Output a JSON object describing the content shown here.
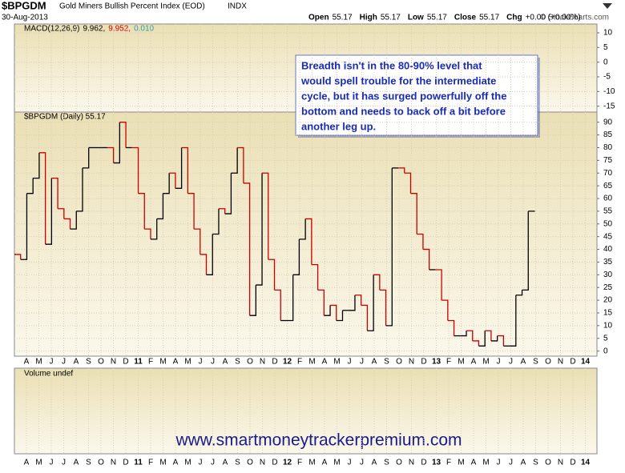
{
  "chart_data": {
    "type": "step-line",
    "symbol": "$BPGDM",
    "title": "Gold Miners Bullish Percent Index (EOD)",
    "exchange": "INDX",
    "date": "30-Aug-2013",
    "quote": [
      {
        "label": "Open",
        "value": 55.17
      },
      {
        "label": "High",
        "value": 55.17
      },
      {
        "label": "Low",
        "value": 55.17
      },
      {
        "label": "Close",
        "value": 55.17
      }
    ],
    "change_label": "Chg",
    "change": "+0.00 (+0.00%)",
    "copyright": "© StockCharts.com",
    "macd_panel": {
      "label": "MACD(12,26,9)",
      "readings": [
        {
          "text": "9.962,",
          "color": "#000000"
        },
        {
          "text": "9.952,",
          "color": "#d40000"
        },
        {
          "text": "0.010",
          "color": "#2a9fa8"
        }
      ],
      "ylim": [
        -17,
        13
      ],
      "yticks": [
        10,
        5,
        0,
        -5,
        -10,
        -15
      ]
    },
    "price_label": "$BPGDM (Daily) 55.17",
    "volume_label": "Volume undef",
    "annotation": [
      "Breadth isn't in the 80-90% level that",
      "would spell trouble for the intermediate",
      "cycle, but it has surged powerfully off the",
      "bottom and needs to back off a bit before",
      "another leg up."
    ],
    "watermark": "www.smartmoneytrackerpremium.com",
    "month_labels": [
      "A",
      "M",
      "J",
      "J",
      "A",
      "S",
      "O",
      "N",
      "D",
      "11",
      "F",
      "M",
      "A",
      "M",
      "J",
      "J",
      "A",
      "S",
      "O",
      "N",
      "D",
      "12",
      "F",
      "M",
      "A",
      "M",
      "J",
      "J",
      "A",
      "S",
      "O",
      "N",
      "D",
      "13",
      "F",
      "M",
      "A",
      "M",
      "J",
      "J",
      "A",
      "S",
      "O",
      "N",
      "D",
      "14"
    ],
    "ylim": [
      -2,
      94
    ],
    "yticks": [
      0,
      5,
      10,
      15,
      20,
      25,
      30,
      35,
      40,
      45,
      50,
      55,
      60,
      65,
      70,
      75,
      80,
      85,
      90
    ],
    "grid": true,
    "up_color": "#000000",
    "down_color": "#cc0000",
    "series": [
      {
        "name": "$BPGDM",
        "values": [
          38,
          36,
          62,
          68,
          78,
          42,
          68,
          56,
          52,
          48,
          55,
          72,
          80,
          80,
          80,
          80,
          74,
          90,
          80,
          80,
          62,
          48,
          44,
          52,
          62,
          70,
          64,
          80,
          62,
          48,
          38,
          30,
          46,
          56,
          54,
          70,
          80,
          66,
          14,
          26,
          70,
          36,
          24,
          12,
          12,
          30,
          44,
          52,
          34,
          24,
          14,
          18,
          12,
          16,
          16,
          22,
          18,
          8,
          30,
          24,
          10,
          72,
          72,
          70,
          62,
          46,
          40,
          32,
          32,
          20,
          12,
          6,
          6,
          8,
          4,
          2,
          8,
          4,
          6,
          2,
          2,
          22,
          24,
          55,
          55.17
        ]
      }
    ]
  }
}
